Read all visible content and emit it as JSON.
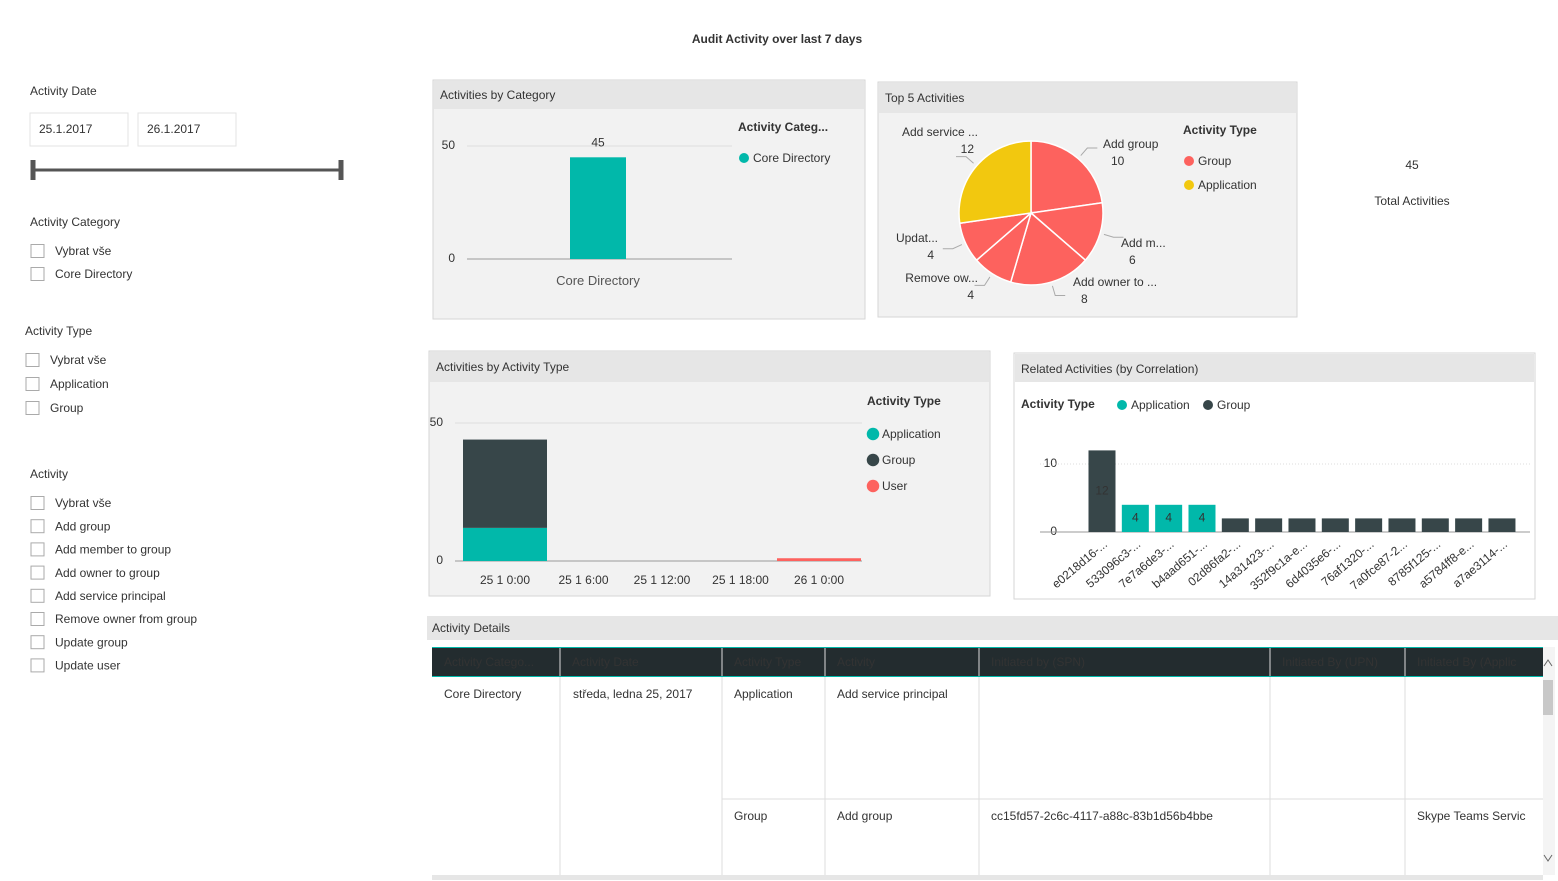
{
  "title": "Audit Activity over last 7 days",
  "filters": {
    "date": {
      "label": "Activity Date",
      "from": "25.1.2017",
      "to": "26.1.2017"
    },
    "category": {
      "label": "Activity Category",
      "options": [
        "Vybrat vše",
        "Core Directory"
      ]
    },
    "type": {
      "label": "Activity Type",
      "options": [
        "Vybrat vše",
        "Application",
        "Group"
      ]
    },
    "activity": {
      "label": "Activity",
      "options": [
        "Vybrat vše",
        "Add group",
        "Add member to group",
        "Add owner to group",
        "Add service principal",
        "Remove owner from group",
        "Update group",
        "Update user"
      ]
    }
  },
  "chart_data": [
    {
      "type": "bar",
      "title": "Activities by Category",
      "categories": [
        "Core Directory"
      ],
      "series": [
        {
          "name": "Core Directory",
          "color": "#01b8aa",
          "values": [
            45
          ]
        }
      ],
      "legend_title": "Activity Categ...",
      "ylim": [
        0,
        50
      ],
      "yticks": [
        0,
        50
      ],
      "grid": true,
      "data_labels": "outside"
    },
    {
      "type": "pie",
      "title": "Top 5 Activities",
      "categories": [
        "Add group",
        "Add m...",
        "Add owner to ...",
        "Remove ow...",
        "Updat...",
        "Add service ..."
      ],
      "values": [
        10,
        6,
        8,
        4,
        4,
        12
      ],
      "colors": [
        "#fd625e",
        "#fd625e",
        "#fd625e",
        "#fd625e",
        "#fd625e",
        "#f2c80f"
      ],
      "legend_title": "Activity Type",
      "legend": [
        {
          "name": "Group",
          "color": "#fd625e"
        },
        {
          "name": "Application",
          "color": "#f2c80f"
        }
      ]
    },
    {
      "type": "bar",
      "title": "Activities by Activity Type",
      "categories": [
        "25 1 0:00",
        "25 1 6:00",
        "25 1 12:00",
        "25 1 18:00",
        "26 1 0:00"
      ],
      "series": [
        {
          "name": "Application",
          "color": "#01b8aa",
          "values": [
            12,
            null,
            null,
            null,
            null
          ]
        },
        {
          "name": "Group",
          "color": "#374649",
          "values": [
            32,
            null,
            null,
            null,
            null
          ]
        },
        {
          "name": "User",
          "color": "#fd625e",
          "values": [
            null,
            null,
            null,
            null,
            1
          ]
        }
      ],
      "legend_title": "Activity Type",
      "ylim": [
        0,
        50
      ],
      "yticks": [
        0,
        50
      ],
      "grid": true
    },
    {
      "type": "bar",
      "title": "Related Activities (by Correlation)",
      "categories": [
        "e0218d16-...",
        "533096c3-...",
        "7e7a6de3-...",
        "b4aad651-...",
        "02d86fa2-...",
        "14a31423-...",
        "352f9c1a-e...",
        "6d4035e6-...",
        "76af1320-...",
        "7a0fce87-2...",
        "8785f125-...",
        "a5784ff8-e...",
        "a7ae3114-..."
      ],
      "series": [
        {
          "name": "Application",
          "color": "#01b8aa",
          "values": [
            null,
            4,
            4,
            4,
            null,
            null,
            null,
            null,
            null,
            null,
            null,
            null,
            null
          ]
        },
        {
          "name": "Group",
          "color": "#374649",
          "values": [
            12,
            null,
            null,
            null,
            2,
            2,
            2,
            2,
            2,
            2,
            2,
            2,
            2
          ]
        }
      ],
      "legend_title": "Activity Type",
      "ylim": [
        0,
        12
      ],
      "yticks": [
        0,
        10
      ],
      "grid": true,
      "data_labels": "inside"
    }
  ],
  "card": {
    "value": 45,
    "label": "Total Activities"
  },
  "table": {
    "title": "Activity Details",
    "columns": [
      "Activity Catego...",
      "Activity Date",
      "Activity Type",
      "Activity",
      "Initiated by (SPN)",
      "Initiated By (UPN)",
      "Initiated By (Applic"
    ],
    "rows": [
      {
        "category": "Core Directory",
        "date": "středa, ledna 25, 2017",
        "items": [
          {
            "type": "Application",
            "activity": "Add service principal"
          },
          {
            "type": "Group",
            "activity": "Add group",
            "spn": "cc15fd57-2c6c-4117-a88c-83b1d56b4bbe",
            "application": "Skype Teams Servic"
          }
        ]
      }
    ]
  }
}
